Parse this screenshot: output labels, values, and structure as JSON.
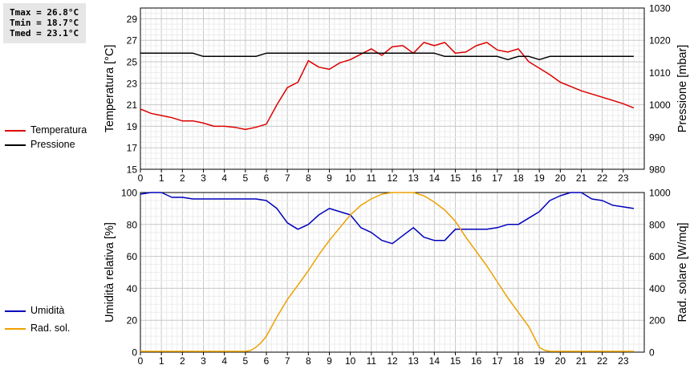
{
  "stats": {
    "tmax": "Tmax = 26.8°C",
    "tmin": "Tmin = 18.7°C",
    "tmed": "Tmed = 23.1°C"
  },
  "legend": {
    "temperature": {
      "label": "Temperatura",
      "color": "#dd0000"
    },
    "pressure": {
      "label": "Pressione",
      "color": "#000000"
    },
    "humidity": {
      "label": "Umidità",
      "color": "#0000bb"
    },
    "solar": {
      "label": "Rad. sol.",
      "color": "#eea000"
    }
  },
  "chart_data": [
    {
      "type": "line",
      "x_ticks": [
        "0",
        "1",
        "2",
        "3",
        "4",
        "5",
        "6",
        "7",
        "8",
        "9",
        "10",
        "11",
        "12",
        "13",
        "14",
        "15",
        "16",
        "17",
        "18",
        "19",
        "20",
        "21",
        "22",
        "23"
      ],
      "xlim": [
        0,
        24
      ],
      "ylabel": "Temperatura [°C]",
      "ylim": [
        15,
        30
      ],
      "y_ticks": [
        "15",
        "17",
        "19",
        "21",
        "23",
        "25",
        "27",
        "29"
      ],
      "y2label": "Pressione [mbar]",
      "y2lim": [
        980,
        1030
      ],
      "y2_ticks": [
        "980",
        "990",
        "1000",
        "1010",
        "1020",
        "1030"
      ],
      "grid": true,
      "series": [
        {
          "name": "Temperatura",
          "axis": "left",
          "color": "#dd0000",
          "x": [
            0,
            0.25,
            0.5,
            1,
            1.5,
            2,
            2.5,
            3,
            3.5,
            4,
            4.5,
            5,
            5.5,
            6,
            6.5,
            7,
            7.5,
            8,
            8.5,
            9,
            9.5,
            10,
            10.5,
            11,
            11.5,
            12,
            12.5,
            13,
            13.5,
            14,
            14.5,
            15,
            15.5,
            16,
            16.5,
            17,
            17.5,
            18,
            18.5,
            19,
            19.5,
            20,
            20.5,
            21,
            21.5,
            22,
            22.5,
            23,
            23.5
          ],
          "y": [
            20.6,
            20.4,
            20.2,
            20.0,
            19.8,
            19.5,
            19.5,
            19.3,
            19.0,
            19.0,
            18.9,
            18.7,
            18.9,
            19.2,
            21.0,
            22.6,
            23.1,
            25.1,
            24.5,
            24.3,
            24.9,
            25.2,
            25.7,
            26.2,
            25.6,
            26.4,
            26.5,
            25.8,
            26.8,
            26.5,
            26.8,
            25.8,
            25.9,
            26.5,
            26.8,
            26.1,
            25.9,
            26.2,
            25.0,
            24.4,
            23.8,
            23.1,
            22.7,
            22.3,
            22.0,
            21.7,
            21.4,
            21.1,
            20.7
          ]
        },
        {
          "name": "Pressione",
          "axis": "right",
          "color": "#000000",
          "x": [
            0,
            0.5,
            1,
            1.5,
            2,
            2.5,
            3,
            3.5,
            4,
            4.5,
            5,
            5.5,
            6,
            6.5,
            7,
            7.5,
            8,
            8.5,
            9,
            9.5,
            10,
            10.5,
            11,
            11.5,
            12,
            12.5,
            13,
            13.5,
            14,
            14.5,
            15,
            15.5,
            16,
            16.5,
            17,
            17.5,
            18,
            18.5,
            19,
            19.5,
            20,
            20.5,
            21,
            21.5,
            22,
            22.5,
            23,
            23.5
          ],
          "y": [
            1016,
            1016,
            1016,
            1016,
            1016,
            1016,
            1015,
            1015,
            1015,
            1015,
            1015,
            1015,
            1016,
            1016,
            1016,
            1016,
            1016,
            1016,
            1016,
            1016,
            1016,
            1016,
            1016,
            1016,
            1016,
            1016,
            1016,
            1016,
            1016,
            1015,
            1015,
            1015,
            1015,
            1015,
            1015,
            1014,
            1015,
            1015,
            1014,
            1015,
            1015,
            1015,
            1015,
            1015,
            1015,
            1015,
            1015,
            1015
          ]
        }
      ]
    },
    {
      "type": "line",
      "x_ticks": [
        "0",
        "1",
        "2",
        "3",
        "4",
        "5",
        "6",
        "7",
        "8",
        "9",
        "10",
        "11",
        "12",
        "13",
        "14",
        "15",
        "16",
        "17",
        "18",
        "19",
        "20",
        "21",
        "22",
        "23"
      ],
      "xlim": [
        0,
        24
      ],
      "ylabel": "Umidità relativa [%]",
      "ylim": [
        0,
        100
      ],
      "y_ticks": [
        "0",
        "20",
        "40",
        "60",
        "80",
        "100"
      ],
      "y2label": "Rad. solare [W/mq]",
      "y2lim": [
        0,
        1000
      ],
      "y2_ticks": [
        "0",
        "200",
        "400",
        "600",
        "800",
        "1000"
      ],
      "grid": true,
      "series": [
        {
          "name": "Umidità",
          "axis": "left",
          "color": "#0000bb",
          "x": [
            0,
            0.5,
            1,
            1.5,
            2,
            2.5,
            3,
            3.5,
            4,
            4.5,
            5,
            5.5,
            6,
            6.5,
            7,
            7.5,
            8,
            8.5,
            9,
            9.5,
            10,
            10.5,
            11,
            11.5,
            12,
            12.5,
            13,
            13.5,
            14,
            14.5,
            15,
            15.5,
            16,
            16.5,
            17,
            17.5,
            18,
            18.5,
            19,
            19.5,
            20,
            20.5,
            21,
            21.5,
            22,
            22.5,
            23,
            23.5
          ],
          "y": [
            99,
            100,
            100,
            97,
            97,
            96,
            96,
            96,
            96,
            96,
            96,
            96,
            95,
            90,
            81,
            77,
            80,
            86,
            90,
            88,
            86,
            78,
            75,
            70,
            68,
            73,
            78,
            72,
            70,
            70,
            77,
            77,
            77,
            77,
            78,
            80,
            80,
            84,
            88,
            95,
            98,
            100,
            100,
            96,
            95,
            92,
            91,
            90
          ]
        },
        {
          "name": "Rad. sol.",
          "axis": "right",
          "color": "#eea000",
          "x": [
            0,
            0.5,
            1,
            1.5,
            2,
            2.5,
            3,
            3.5,
            4,
            4.5,
            5,
            5.25,
            5.5,
            5.75,
            6,
            6.5,
            7,
            7.5,
            8,
            8.5,
            9,
            9.5,
            10,
            10.5,
            11,
            11.5,
            12,
            12.5,
            13,
            13.5,
            14,
            14.5,
            15,
            15.5,
            16,
            16.5,
            17,
            17.5,
            18,
            18.5,
            19,
            19.25,
            19.5,
            20,
            20.5,
            21,
            21.5,
            22,
            22.5,
            23,
            23.5
          ],
          "y": [
            5,
            5,
            5,
            5,
            5,
            5,
            5,
            5,
            5,
            5,
            5,
            10,
            30,
            60,
            100,
            220,
            330,
            420,
            510,
            610,
            700,
            780,
            860,
            920,
            960,
            990,
            1000,
            1000,
            1000,
            980,
            940,
            890,
            820,
            720,
            630,
            540,
            440,
            340,
            250,
            160,
            30,
            12,
            5,
            5,
            5,
            5,
            5,
            5,
            5,
            5,
            5
          ]
        }
      ]
    }
  ]
}
